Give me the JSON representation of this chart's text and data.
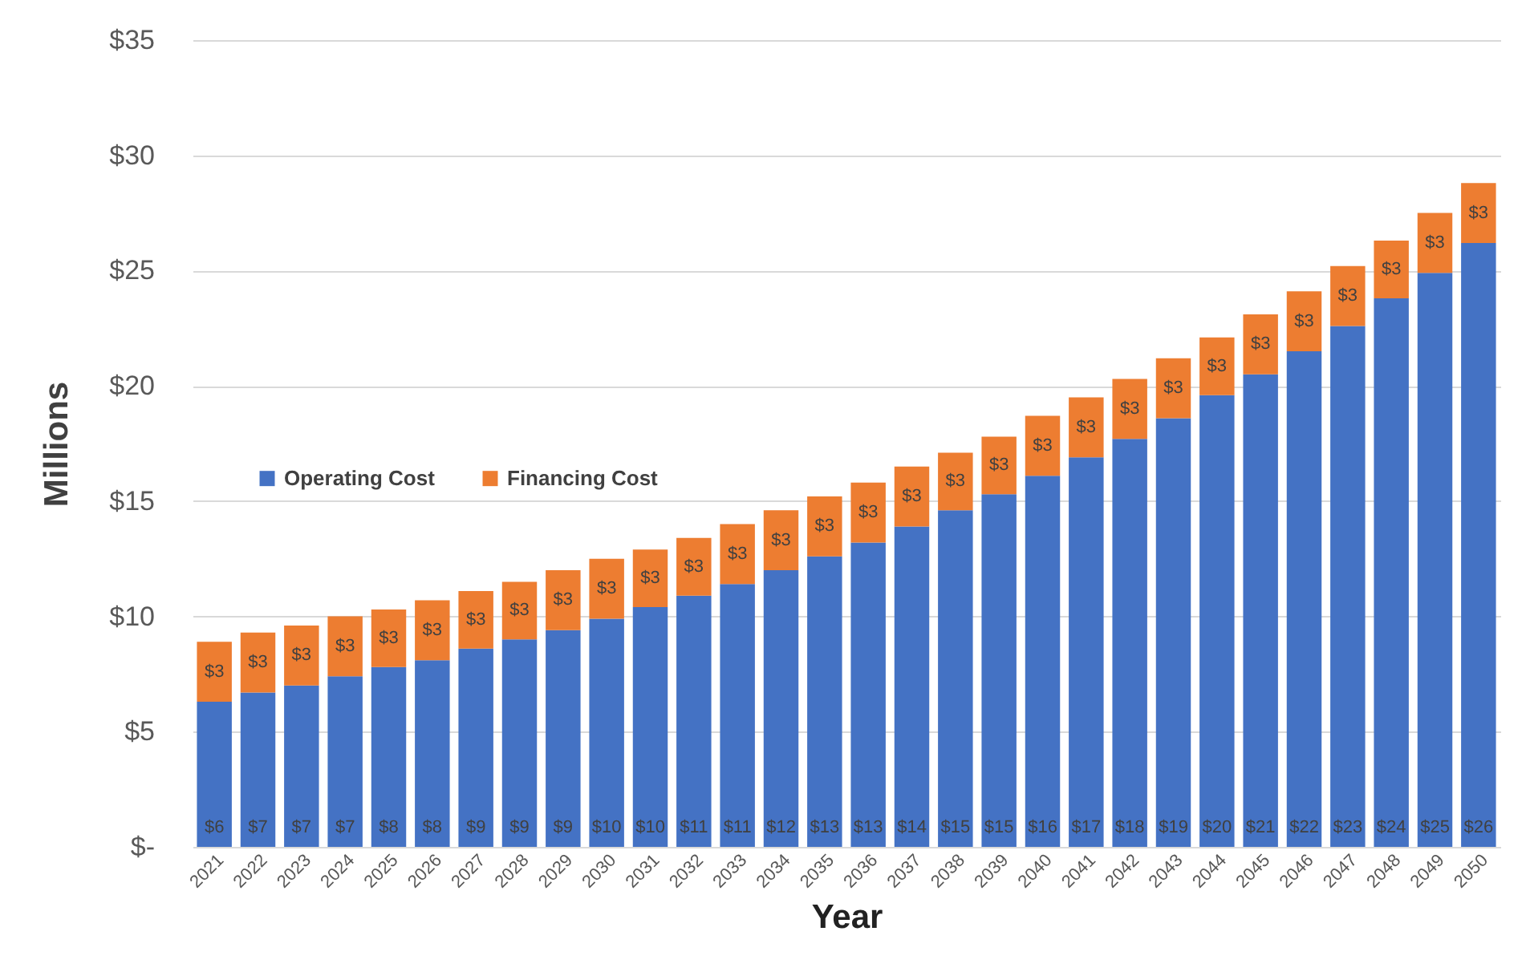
{
  "chart_data": {
    "type": "bar",
    "stacked": true,
    "xlabel": "Year",
    "ylabel": "Millions",
    "categories": [
      "2021",
      "2022",
      "2023",
      "2024",
      "2025",
      "2026",
      "2027",
      "2028",
      "2029",
      "2030",
      "2031",
      "2032",
      "2033",
      "2034",
      "2035",
      "2036",
      "2037",
      "2038",
      "2039",
      "2040",
      "2041",
      "2042",
      "2043",
      "2044",
      "2045",
      "2046",
      "2047",
      "2048",
      "2049",
      "2050"
    ],
    "series": [
      {
        "name": "Operating Cost",
        "color": "#4472c4",
        "values": [
          6.3,
          6.7,
          7.0,
          7.4,
          7.8,
          8.1,
          8.6,
          9.0,
          9.4,
          9.9,
          10.4,
          10.9,
          11.4,
          12.0,
          12.6,
          13.2,
          13.9,
          14.6,
          15.3,
          16.1,
          16.9,
          17.7,
          18.6,
          19.6,
          20.5,
          21.5,
          22.6,
          23.8,
          24.9,
          26.2
        ],
        "value_labels": [
          "$6",
          "$7",
          "$7",
          "$7",
          "$8",
          "$8",
          "$9",
          "$9",
          "$9",
          "$10",
          "$10",
          "$11",
          "$11",
          "$12",
          "$13",
          "$13",
          "$14",
          "$15",
          "$15",
          "$16",
          "$17",
          "$18",
          "$19",
          "$20",
          "$21",
          "$22",
          "$23",
          "$24",
          "$25",
          "$26"
        ]
      },
      {
        "name": "Financing Cost",
        "color": "#ed7d31",
        "values": [
          2.6,
          2.6,
          2.6,
          2.6,
          2.5,
          2.6,
          2.5,
          2.5,
          2.6,
          2.6,
          2.5,
          2.5,
          2.6,
          2.6,
          2.6,
          2.6,
          2.6,
          2.5,
          2.5,
          2.6,
          2.6,
          2.6,
          2.6,
          2.5,
          2.6,
          2.6,
          2.6,
          2.5,
          2.6,
          2.6
        ],
        "value_labels": [
          "$3",
          "$3",
          "$3",
          "$3",
          "$3",
          "$3",
          "$3",
          "$3",
          "$3",
          "$3",
          "$3",
          "$3",
          "$3",
          "$3",
          "$3",
          "$3",
          "$3",
          "$3",
          "$3",
          "$3",
          "$3",
          "$3",
          "$3",
          "$3",
          "$3",
          "$3",
          "$3",
          "$3",
          "$3",
          "$3"
        ]
      }
    ],
    "ylim": [
      0,
      35
    ],
    "yticks": [
      {
        "value": 0,
        "label": "$-"
      },
      {
        "value": 5,
        "label": "$5"
      },
      {
        "value": 10,
        "label": "$10"
      },
      {
        "value": 15,
        "label": "$15"
      },
      {
        "value": 20,
        "label": "$20"
      },
      {
        "value": 25,
        "label": "$25"
      },
      {
        "value": 30,
        "label": "$30"
      },
      {
        "value": 35,
        "label": "$35"
      }
    ],
    "grid": "y",
    "legend": "left"
  }
}
